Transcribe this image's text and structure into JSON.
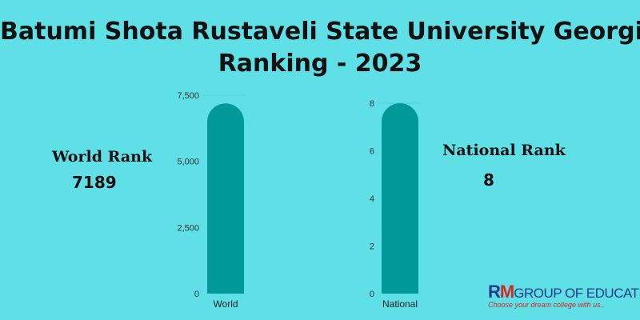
{
  "title": {
    "line1": "Batumi Shota Rustaveli State University Georgia",
    "line2": "Ranking - 2023"
  },
  "world": {
    "label": "World Rank",
    "value": "7189"
  },
  "national": {
    "label": "National Rank",
    "value": "8"
  },
  "logo": {
    "r": "R",
    "m": "M",
    "rest": "GROUP OF EDUCATION",
    "tagline": "Choose your dream college with us.."
  },
  "chart_data": [
    {
      "type": "bar",
      "categories": [
        "World"
      ],
      "values": [
        7189
      ],
      "ylim": [
        0,
        7500
      ],
      "yticks": [
        "0",
        "2,500",
        "5,000",
        "7,500"
      ],
      "color": "#009999"
    },
    {
      "type": "bar",
      "categories": [
        "National"
      ],
      "values": [
        8
      ],
      "ylim": [
        0,
        8
      ],
      "yticks": [
        "0",
        "2",
        "4",
        "6",
        "8"
      ],
      "color": "#009999"
    }
  ]
}
